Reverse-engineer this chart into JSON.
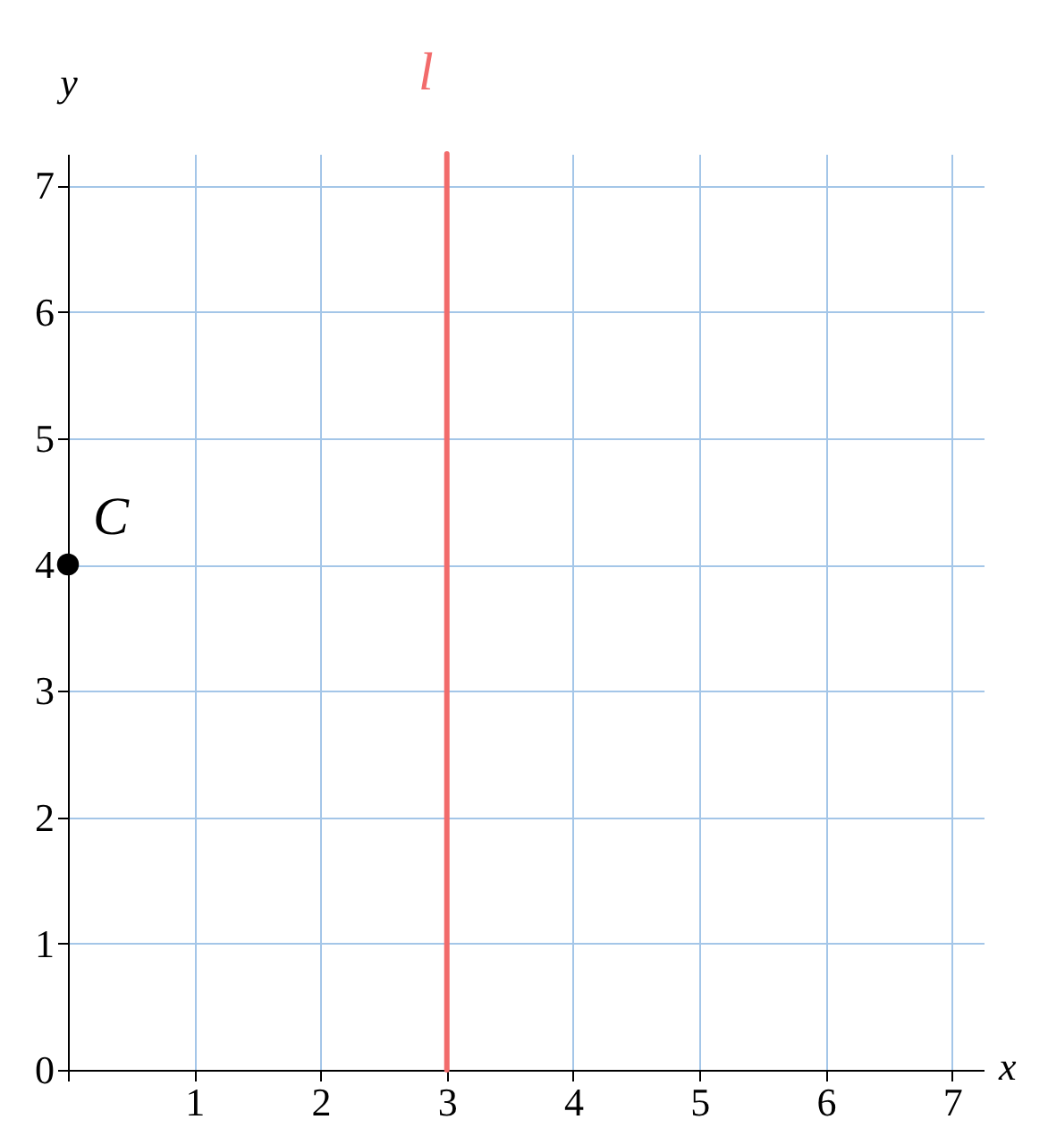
{
  "chart_data": {
    "type": "scatter",
    "xlabel": "x",
    "ylabel": "y",
    "x": [
      0
    ],
    "series": [
      {
        "name": "C",
        "color": "#000000",
        "values": [
          4
        ]
      }
    ],
    "xlim": [
      0,
      7.25
    ],
    "ylim": [
      0,
      7.25
    ],
    "xticks": [
      {
        "value": 0,
        "label": null
      },
      1,
      2,
      3,
      4,
      5,
      6,
      7
    ],
    "yticks": [
      0,
      1,
      2,
      3,
      4,
      5,
      6,
      7
    ],
    "grid": true,
    "marker": "circle",
    "ref_lines": [
      {
        "axis": "x",
        "value": 3,
        "label": "l⃡",
        "color": "#f26b6b"
      }
    ]
  }
}
